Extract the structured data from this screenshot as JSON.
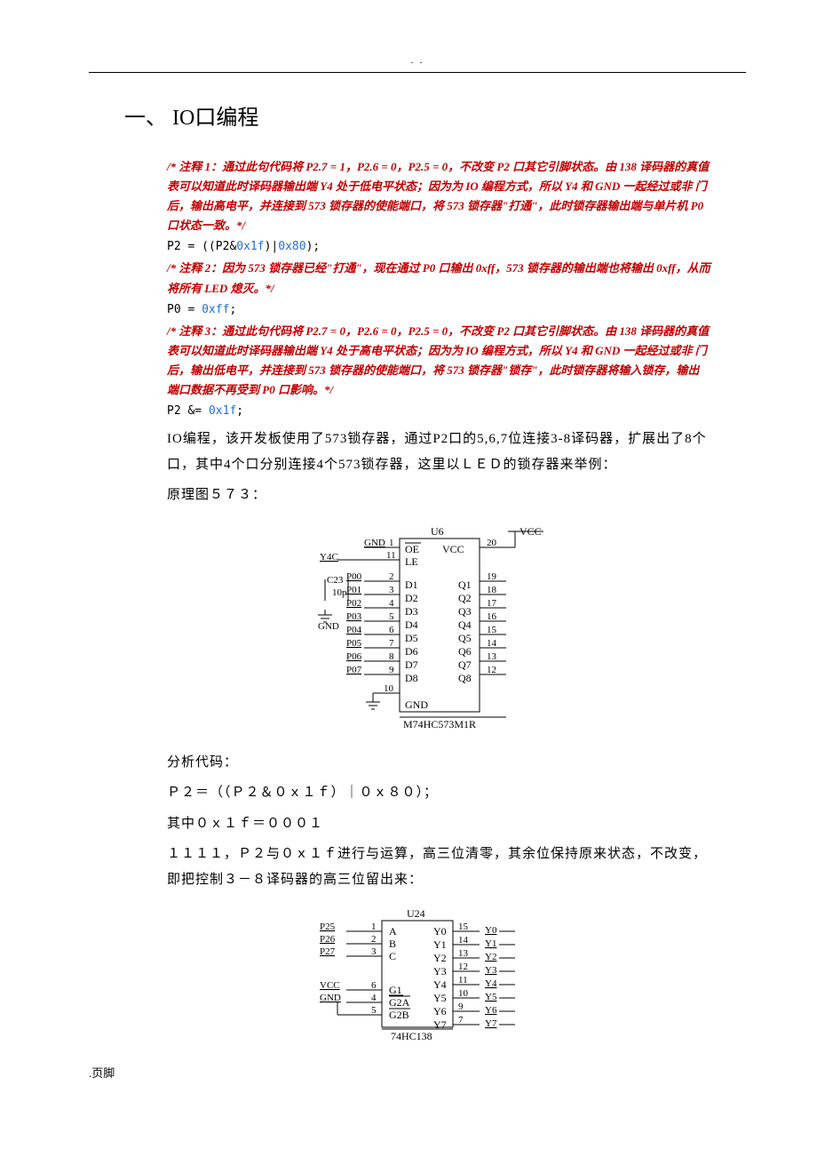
{
  "header": {
    "dots": ". ."
  },
  "heading": "一、 IO口编程",
  "comment1": "/* 注释 1：通过此句代码将 P2.7 = 1，P2.6 = 0，P2.5 = 0，不改变 P2 口其它引脚状态。由 138 译码器的真值表可以知道此时译码器输出端 Y4 处于低电平状态；因为为 IO 编程方式，所以 Y4 和 GND 一起经过或非 门后，输出高电平，并连接到 573 锁存器的使能端口，将 573 锁存器\"打通\"，此时锁存器输出端与单片机 P0 口状态一致。*/",
  "code1_pre": "P2 = ((P2&",
  "code1_h1": "0x1f",
  "code1_mid": ")|",
  "code1_h2": "0x80",
  "code1_post": ");",
  "comment2": "/* 注释 2：因为 573 锁存器已经\"打通\"，现在通过 P0 口输出 0xff，573 锁存器的输出端也将输出 0xff，从而将所有 LED 熄灭。*/",
  "code2_pre": "P0 = ",
  "code2_h": "0xff",
  "code2_post": ";",
  "comment3": "/* 注释 3：通过此句代码将 P2.7 = 0，P2.6 = 0，P2.5 = 0，不改变 P2 口其它引脚状态。由 138 译码器的真值表可以知道此时译码器输出端 Y4 处于高电平状态；因为为 IO 编程方式，所以 Y4 和 GND 一起经过或非 门后，输出低电平，并连接到 573 锁存器的使能端口，将 573 锁存器\"锁存\"，此时锁存器将输入锁存，输出端口数据不再受到 P0 口影响。*/",
  "code3_pre": "P2 &= ",
  "code3_h": "0x1f",
  "code3_post": ";",
  "para1": "IO编程，该开发板使用了573锁存器，通过P2口的5,6,7位连接3-8译码器，扩展出了8个口，其中4个口分别连接4个573锁存器，这里以ＬＥＤ的锁存器来举例：",
  "para2": "原理图５７３：",
  "analysis_title": "分析代码：",
  "analysis_l1": "Ｐ２＝（（Ｐ２＆０ｘ１ｆ）｜０ｘ８０）；",
  "analysis_l2": "其中０ｘ１ｆ＝０００１",
  "analysis_l3": "１１１１，Ｐ２与０ｘ１ｆ进行与运算，高三位清零，其余位保持原来状态，不改变，即把控制３－８译码器的高三位留出来：",
  "footer": ".页脚",
  "diag573": {
    "title": "U6",
    "part": "M74HC573M1R",
    "vcc": "VCC",
    "left_net": [
      "Y4C",
      "",
      "GND",
      "",
      "C23",
      "10p",
      "",
      "",
      "GND"
    ],
    "left_pins": [
      {
        "n": "1",
        "lab": "GND"
      },
      {
        "n": "11",
        "lab": ""
      },
      {
        "n": "2",
        "lab": "P00"
      },
      {
        "n": "3",
        "lab": "P01"
      },
      {
        "n": "4",
        "lab": "P02"
      },
      {
        "n": "5",
        "lab": "P03"
      },
      {
        "n": "6",
        "lab": "P04"
      },
      {
        "n": "7",
        "lab": "P05"
      },
      {
        "n": "8",
        "lab": "P06"
      },
      {
        "n": "9",
        "lab": "P07"
      },
      {
        "n": "10",
        "lab": ""
      }
    ],
    "inside_left": [
      "OE",
      "LE",
      "D1",
      "D2",
      "D3",
      "D4",
      "D5",
      "D6",
      "D7",
      "D8",
      "GND"
    ],
    "inside_right": [
      "VCC",
      "",
      "Q1",
      "Q2",
      "Q3",
      "Q4",
      "Q5",
      "Q6",
      "Q7",
      "Q8"
    ],
    "right_pins": [
      "20",
      "",
      "19",
      "18",
      "17",
      "16",
      "15",
      "14",
      "13",
      "12"
    ],
    "colors": {
      "line": "#000000",
      "text": "#000000",
      "bg": "#ffffff"
    }
  },
  "diag138": {
    "title": "U24",
    "part": "74HC138",
    "left": [
      {
        "net": "P25",
        "n": "1",
        "lab": "A"
      },
      {
        "net": "P26",
        "n": "2",
        "lab": "B"
      },
      {
        "net": "P27",
        "n": "3",
        "lab": "C"
      },
      {
        "net": "VCC",
        "n": "6",
        "lab": "G1"
      },
      {
        "net": "GND",
        "n": "4",
        "lab": "G2A"
      },
      {
        "net": "",
        "n": "5",
        "lab": "G2B"
      }
    ],
    "right": [
      {
        "lab": "Y0",
        "n": "15",
        "net": "Y0"
      },
      {
        "lab": "Y1",
        "n": "14",
        "net": "Y1"
      },
      {
        "lab": "Y2",
        "n": "13",
        "net": "Y2"
      },
      {
        "lab": "Y3",
        "n": "12",
        "net": "Y3"
      },
      {
        "lab": "Y4",
        "n": "11",
        "net": "Y4"
      },
      {
        "lab": "Y5",
        "n": "10",
        "net": "Y5"
      },
      {
        "lab": "Y6",
        "n": "9",
        "net": "Y6"
      },
      {
        "lab": "Y7",
        "n": "7",
        "net": "Y7"
      }
    ],
    "colors": {
      "line": "#000000",
      "text": "#000000"
    }
  }
}
